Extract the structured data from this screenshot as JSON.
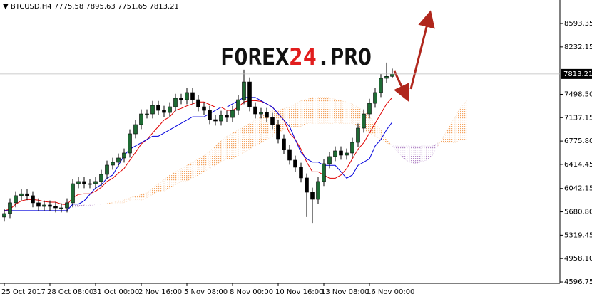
{
  "chart_data": {
    "type": "candlestick",
    "symbol": "BTCUSD,H4",
    "watermark": [
      "FOREX",
      "24",
      ".PRO"
    ],
    "categories": [
      "25 Oct 2017",
      null,
      null,
      null,
      null,
      null,
      null,
      null,
      "28 Oct 08:00",
      null,
      null,
      null,
      null,
      null,
      null,
      null,
      "31 Oct 00:00",
      null,
      null,
      null,
      null,
      null,
      null,
      null,
      "2 Nov 16:00",
      null,
      null,
      null,
      null,
      null,
      null,
      null,
      "5 Nov 08:00",
      null,
      null,
      null,
      null,
      null,
      null,
      null,
      "8 Nov 00:00",
      null,
      null,
      null,
      null,
      null,
      null,
      null,
      "10 Nov 16:00",
      null,
      null,
      null,
      null,
      null,
      null,
      null,
      "13 Nov 08:00",
      null,
      null,
      null,
      null,
      null,
      null,
      null,
      "16 Nov 00:00",
      null,
      null,
      null,
      null,
      null,
      null,
      null,
      null,
      null,
      null,
      null,
      null,
      null,
      null,
      null,
      null,
      null
    ],
    "open": [
      5600,
      5654,
      5820,
      5930,
      5960,
      5930,
      5820,
      5764,
      5786,
      5764,
      5742,
      5742,
      5820,
      6116,
      6150,
      6116,
      6116,
      6150,
      6260,
      6403,
      6447,
      6513,
      6590,
      6887,
      7030,
      7195,
      7195,
      7327,
      7250,
      7217,
      7305,
      7437,
      7415,
      7526,
      7415,
      7305,
      7250,
      7107,
      7085,
      7173,
      7140,
      7250,
      7415,
      7690,
      7305,
      7195,
      7217,
      7140,
      7030,
      6810,
      6645,
      6480,
      6370,
      6205,
      5984,
      5874,
      6150,
      6425,
      6535,
      6623,
      6557,
      6590,
      6755,
      6975,
      7195,
      7360,
      7526,
      7746,
      7775.58,
      null,
      null,
      null,
      null,
      null,
      null,
      null,
      null,
      null,
      null,
      null,
      null,
      null
    ],
    "high": [
      5724,
      5890,
      6000,
      6030,
      6030,
      6000,
      5890,
      5856,
      5856,
      5834,
      5812,
      5890,
      6186,
      6220,
      6220,
      6186,
      6220,
      6330,
      6473,
      6517,
      6583,
      6660,
      6957,
      7100,
      7265,
      7265,
      7397,
      7397,
      7320,
      7375,
      7507,
      7507,
      7596,
      7596,
      7485,
      7375,
      7320,
      7177,
      7243,
      7243,
      7320,
      7485,
      7880,
      7760,
      7375,
      7287,
      7287,
      7210,
      7100,
      6880,
      6715,
      6550,
      6440,
      6275,
      6054,
      6220,
      6495,
      6605,
      6693,
      6693,
      6660,
      6825,
      7045,
      7265,
      7430,
      7596,
      7816,
      7990,
      7895.63,
      null,
      null,
      null,
      null,
      null,
      null,
      null,
      null,
      null,
      null,
      null,
      null,
      null
    ],
    "low": [
      5530,
      5584,
      5750,
      5860,
      5860,
      5750,
      5694,
      5694,
      5694,
      5672,
      5672,
      5672,
      5750,
      6046,
      6046,
      6046,
      6046,
      6080,
      6190,
      6333,
      6377,
      6443,
      6520,
      6817,
      6960,
      7125,
      7125,
      7180,
      7147,
      7147,
      7235,
      7345,
      7345,
      7345,
      7235,
      7180,
      7037,
      7015,
      7015,
      7070,
      7070,
      7180,
      7345,
      7235,
      7125,
      7125,
      7070,
      6960,
      6740,
      6575,
      6410,
      6300,
      6135,
      5600,
      5510,
      5804,
      6080,
      6355,
      6465,
      6487,
      6487,
      6520,
      6685,
      6905,
      7125,
      7290,
      7456,
      7676,
      7751.65,
      null,
      null,
      null,
      null,
      null,
      null,
      null,
      null,
      null,
      null,
      null,
      null,
      null
    ],
    "close": [
      5654,
      5820,
      5930,
      5960,
      5930,
      5820,
      5764,
      5786,
      5764,
      5742,
      5742,
      5820,
      6116,
      6150,
      6116,
      6116,
      6150,
      6260,
      6403,
      6447,
      6513,
      6590,
      6887,
      7030,
      7195,
      7195,
      7327,
      7250,
      7217,
      7305,
      7437,
      7415,
      7526,
      7415,
      7305,
      7250,
      7107,
      7085,
      7173,
      7140,
      7250,
      7415,
      7690,
      7305,
      7195,
      7217,
      7140,
      7030,
      6810,
      6645,
      6480,
      6370,
      6205,
      5984,
      5874,
      6150,
      6425,
      6535,
      6623,
      6557,
      6590,
      6755,
      6975,
      7195,
      7360,
      7526,
      7746,
      7775.58,
      7813.21,
      null,
      null,
      null,
      null,
      null,
      null,
      null,
      null,
      null,
      null,
      null,
      null,
      null
    ],
    "up_color": "#1e6b34",
    "down_color": "#000000",
    "lines": [
      {
        "color": "#e00000",
        "values": [
          5700,
          5720,
          5800,
          5850,
          5870,
          5870,
          5860,
          5840,
          5830,
          5830,
          5800,
          5790,
          5900,
          5950,
          5960,
          5960,
          6000,
          6060,
          6150,
          6200,
          6280,
          6350,
          6480,
          6600,
          6730,
          6800,
          6900,
          7000,
          7100,
          7150,
          7250,
          7280,
          7320,
          7350,
          7380,
          7380,
          7340,
          7300,
          7300,
          7250,
          7250,
          7300,
          7380,
          7400,
          7400,
          7390,
          7350,
          7300,
          7200,
          7100,
          6900,
          6800,
          6650,
          6450,
          6300,
          6300,
          6250,
          6200,
          6200,
          6250,
          6350,
          6500,
          6650,
          6750,
          6900,
          7050,
          7200,
          7350,
          7450,
          null,
          null,
          null,
          null,
          null,
          null,
          null,
          null,
          null,
          null,
          null,
          null,
          null
        ]
      },
      {
        "color": "#0000dd",
        "values": [
          5700,
          5700,
          5700,
          5700,
          5700,
          5700,
          5700,
          5700,
          5700,
          5700,
          5700,
          5700,
          5800,
          5800,
          5850,
          5950,
          6050,
          6100,
          6200,
          6250,
          6400,
          6550,
          6650,
          6700,
          6750,
          6800,
          6850,
          6850,
          6900,
          6950,
          7000,
          7050,
          7100,
          7150,
          7150,
          7150,
          7200,
          7250,
          7300,
          7300,
          7350,
          7400,
          7450,
          7450,
          7450,
          7400,
          7350,
          7300,
          7200,
          7100,
          7000,
          6800,
          6600,
          6500,
          6450,
          6450,
          6400,
          6400,
          6400,
          6300,
          6200,
          6250,
          6400,
          6450,
          6500,
          6700,
          6800,
          6950,
          7070,
          null,
          null,
          null,
          null,
          null,
          null,
          null,
          null,
          null,
          null,
          null,
          null,
          null
        ]
      }
    ],
    "cloud": {
      "up_color": "#f4a460",
      "down_color": "#b48ac8",
      "span_a": [
        null,
        null,
        null,
        null,
        null,
        null,
        null,
        null,
        null,
        null,
        null,
        null,
        5750,
        5760,
        5770,
        5780,
        5790,
        5800,
        5810,
        5830,
        5850,
        5870,
        5900,
        5920,
        5950,
        5980,
        6050,
        6120,
        6180,
        6250,
        6300,
        6350,
        6400,
        6450,
        6500,
        6550,
        6620,
        6700,
        6780,
        6850,
        6900,
        6950,
        7000,
        7050,
        7100,
        7150,
        7200,
        7250,
        7250,
        7280,
        7300,
        7350,
        7400,
        7420,
        7450,
        7450,
        7450,
        7450,
        7420,
        7400,
        7380,
        7350,
        7300,
        7250,
        7150,
        7050,
        6950,
        6800,
        6700,
        6600,
        6500,
        6450,
        6420,
        6450,
        6480,
        6550,
        6700,
        6850,
        7000,
        7150,
        7300,
        7400
      ],
      "span_b": [
        null,
        null,
        null,
        null,
        null,
        null,
        null,
        null,
        null,
        null,
        null,
        null,
        5800,
        5800,
        5800,
        5800,
        5800,
        5800,
        5800,
        5820,
        5820,
        5820,
        5850,
        5850,
        5850,
        5900,
        5950,
        6000,
        6000,
        6050,
        6100,
        6150,
        6150,
        6200,
        6250,
        6300,
        6350,
        6400,
        6450,
        6500,
        6500,
        6550,
        6600,
        6650,
        6700,
        6750,
        6800,
        6850,
        6900,
        6950,
        7000,
        7000,
        7000,
        7050,
        7050,
        7050,
        7050,
        7050,
        7050,
        7050,
        7050,
        7050,
        7000,
        6950,
        6900,
        6850,
        6800,
        6750,
        6700,
        6700,
        6700,
        6700,
        6700,
        6700,
        6700,
        6700,
        6750,
        6750,
        6750,
        6750,
        6800,
        6800
      ]
    },
    "ylim": [
      4575,
      8957
    ],
    "yticks": [
      4596.75,
      {
        "value": 4958.1,
        "label": "4958.10"
      },
      5319.45,
      {
        "value": 5680.8,
        "label": "5680.80"
      },
      6042.15,
      6414.45,
      {
        "value": 6775.8,
        "label": "6775.80"
      },
      7137.15,
      {
        "value": 7498.5,
        "label": "7498.50"
      },
      8232.15,
      8593.35
    ]
  }
}
